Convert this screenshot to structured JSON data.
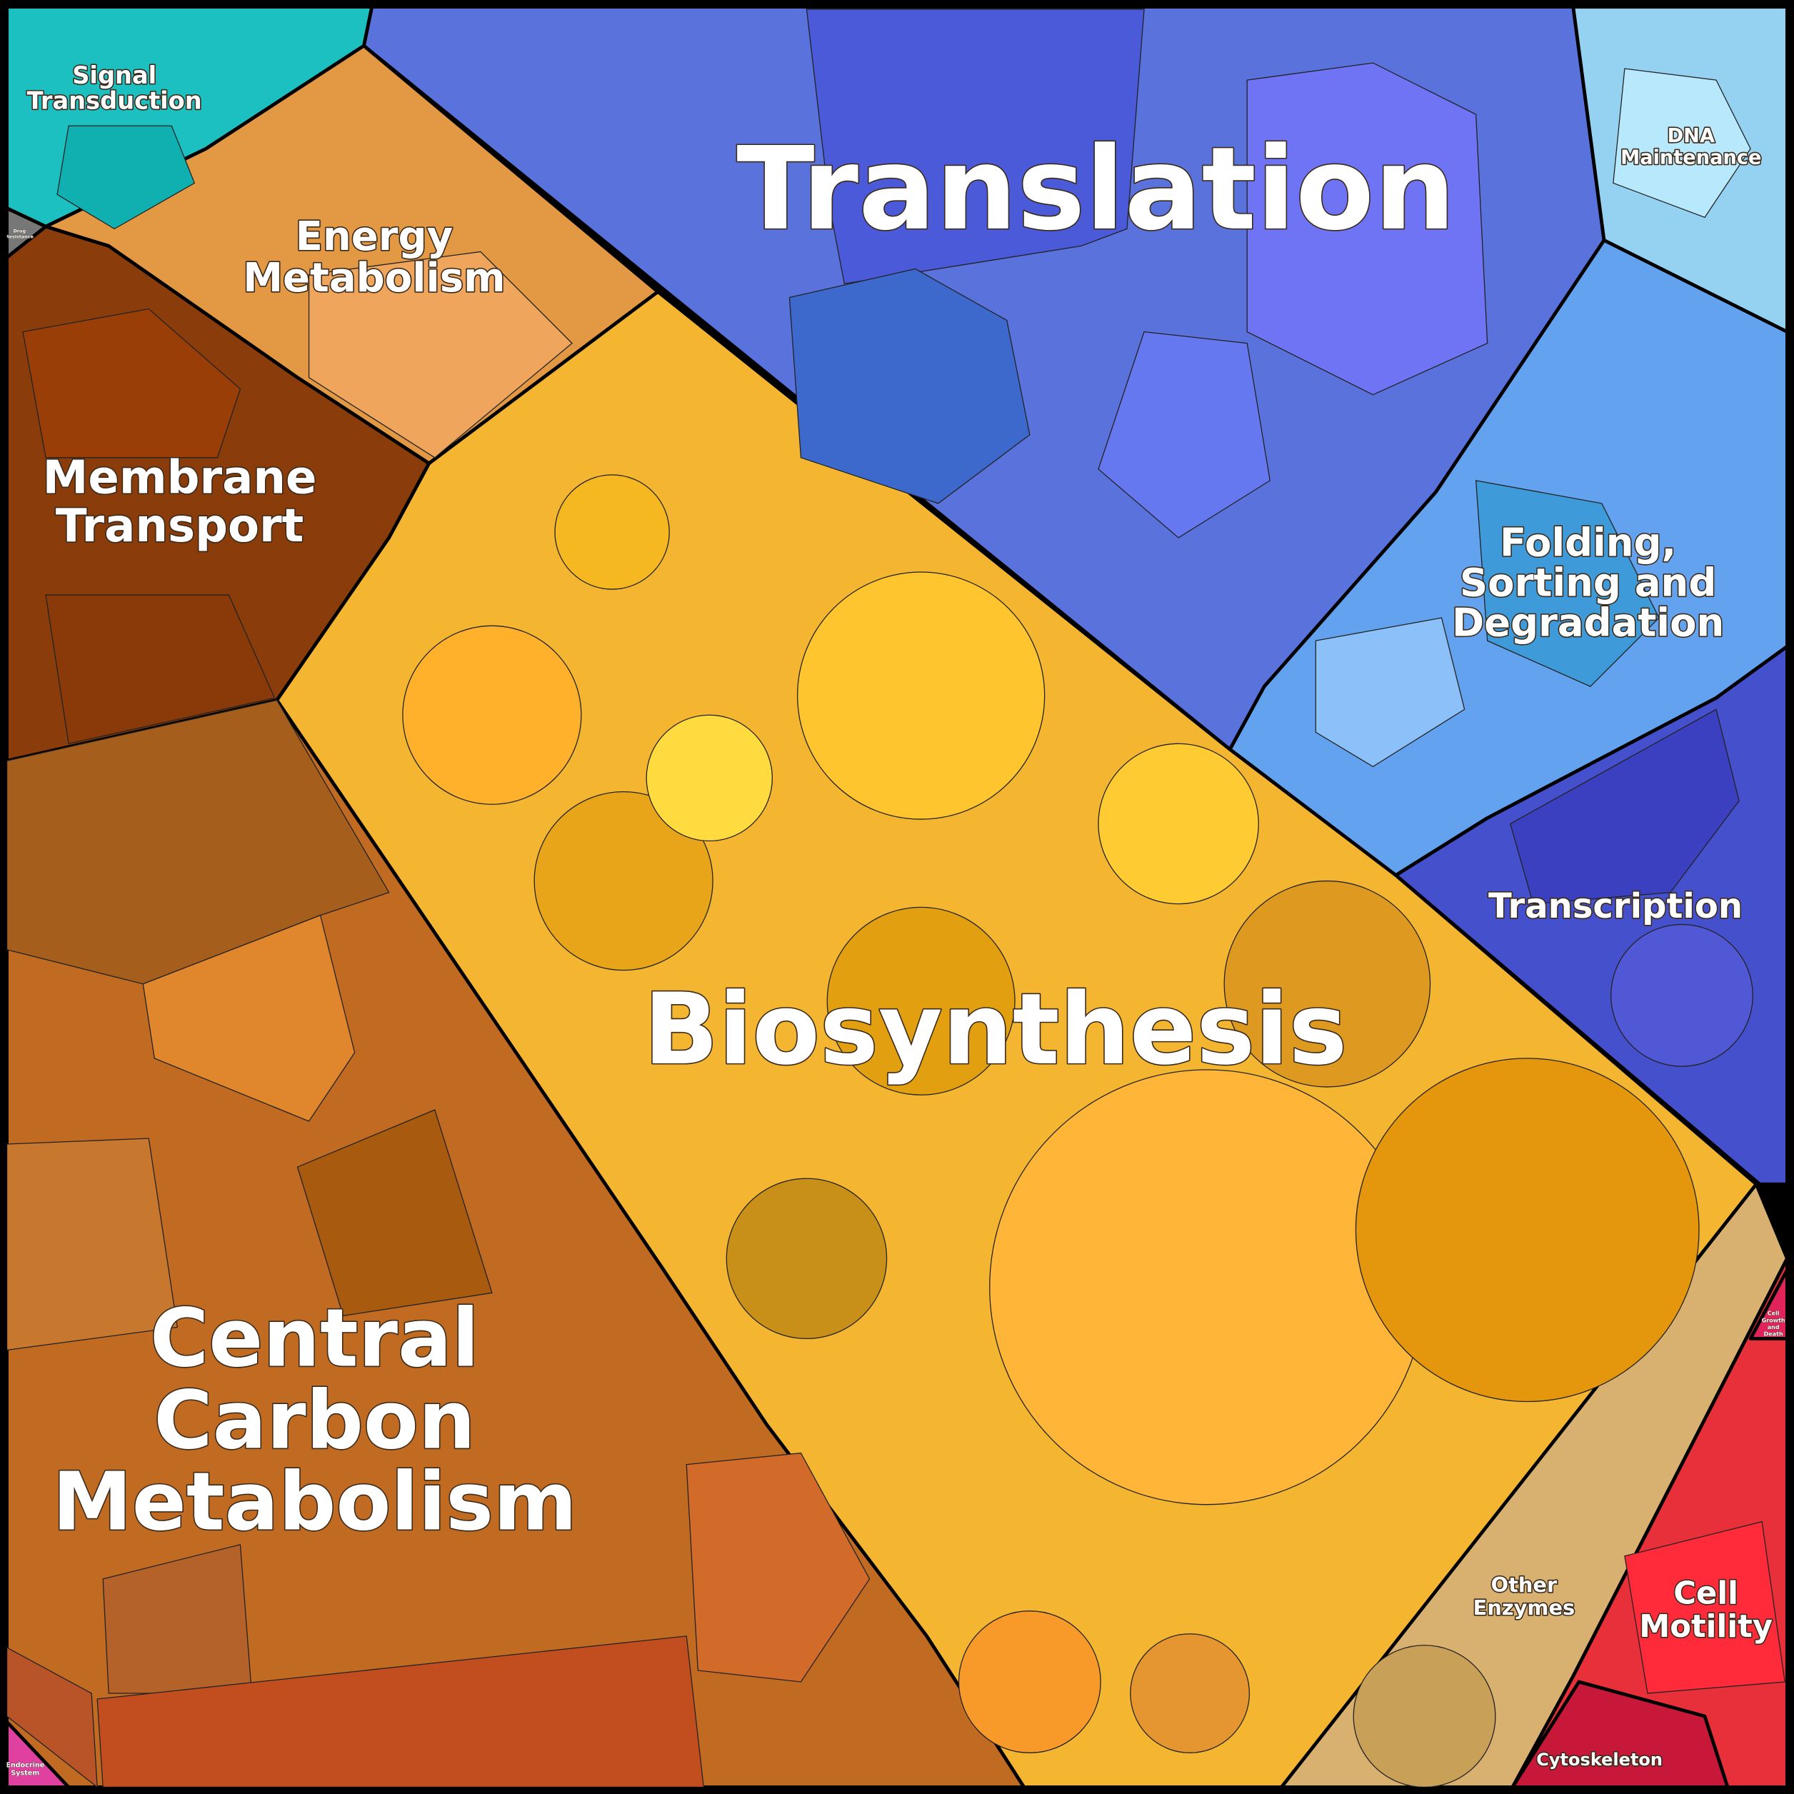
{
  "regions": [
    {
      "lines": [
        "Translation"
      ]
    },
    {
      "lines": [
        "Biosynthesis"
      ]
    },
    {
      "lines": [
        "Central",
        "Carbon",
        "Metabolism"
      ]
    },
    {
      "lines": [
        "Membrane",
        "Transport"
      ]
    },
    {
      "lines": [
        "Energy",
        "Metabolism"
      ]
    },
    {
      "lines": [
        "Signal",
        "Transduction"
      ]
    },
    {
      "lines": [
        "DNA",
        "Maintenance"
      ]
    },
    {
      "lines": [
        "Folding,",
        "Sorting and",
        "Degradation"
      ]
    },
    {
      "lines": [
        "Transcription"
      ]
    },
    {
      "lines": [
        "Other",
        "Enzymes"
      ]
    },
    {
      "lines": [
        "Cell",
        "Motility"
      ]
    },
    {
      "lines": [
        "Cytoskeleton"
      ]
    },
    {
      "lines": [
        "Cell",
        "Growth",
        "and",
        "Death"
      ]
    },
    {
      "lines": [
        "Drug",
        "Resistance"
      ]
    },
    {
      "lines": [
        "Endocrine",
        "System"
      ]
    }
  ]
}
